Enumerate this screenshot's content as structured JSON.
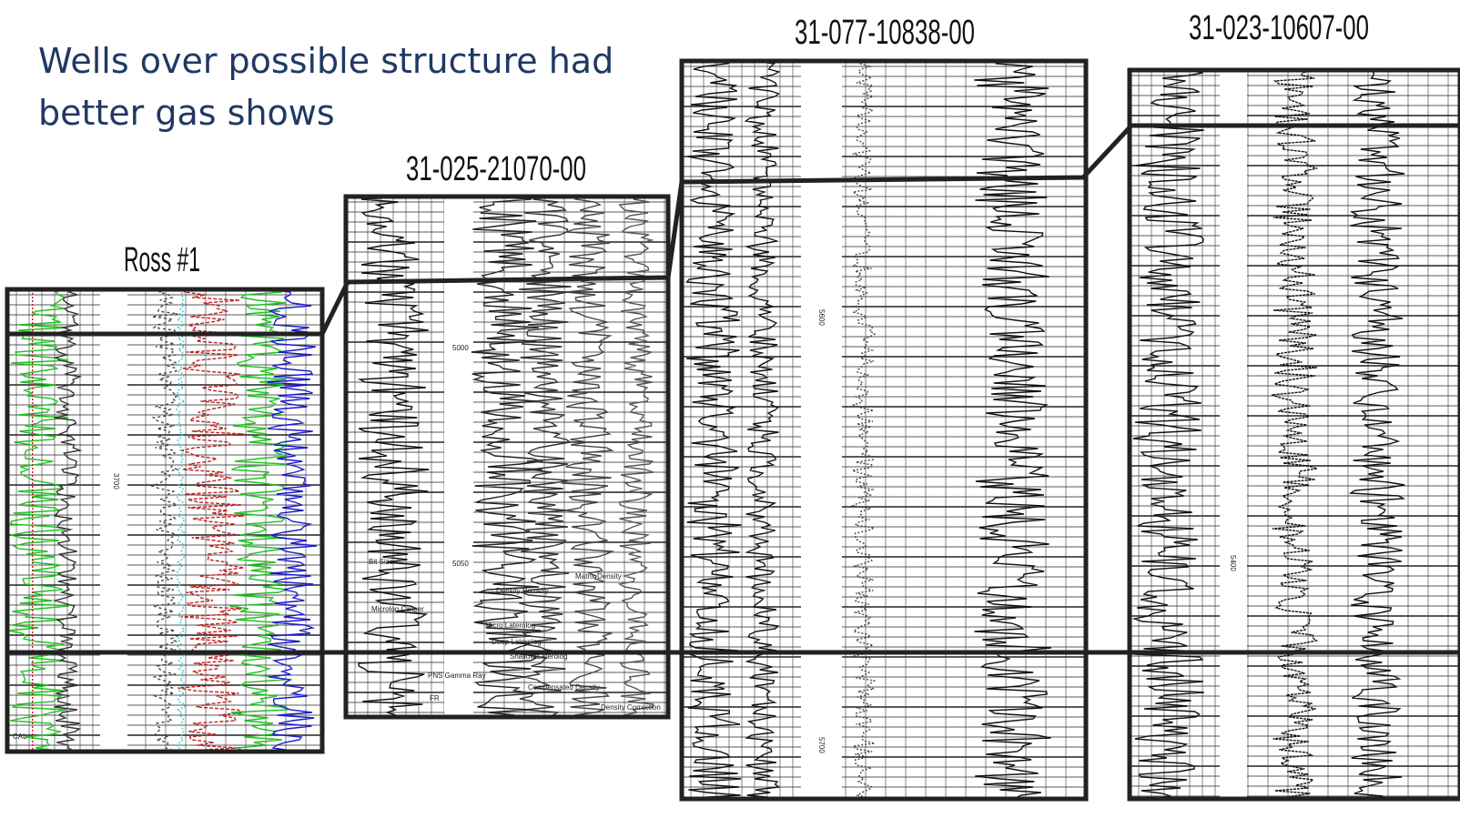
{
  "title_lines": [
    "Wells over possible structure had",
    "better gas shows"
  ],
  "wells": [
    {
      "name": "Ross #1",
      "labels": [
        "3700",
        "CAL"
      ]
    },
    {
      "name": "31-025-21070-00",
      "labels": [
        "5000",
        "5050",
        "Bit Size",
        "Microlog Caliper",
        "PNS Gamma Ray",
        "FR",
        "Density Porosity",
        "Matrix Density",
        "Micro Laterolog",
        "Deep Laterolog",
        "Shallow Laterolog",
        "Compensated Density",
        "Density Correction"
      ]
    },
    {
      "name": "31-077-10838-00",
      "labels": [
        "5600",
        "5700"
      ]
    },
    {
      "name": "31-023-10607-00",
      "labels": [
        "5400"
      ]
    }
  ]
}
